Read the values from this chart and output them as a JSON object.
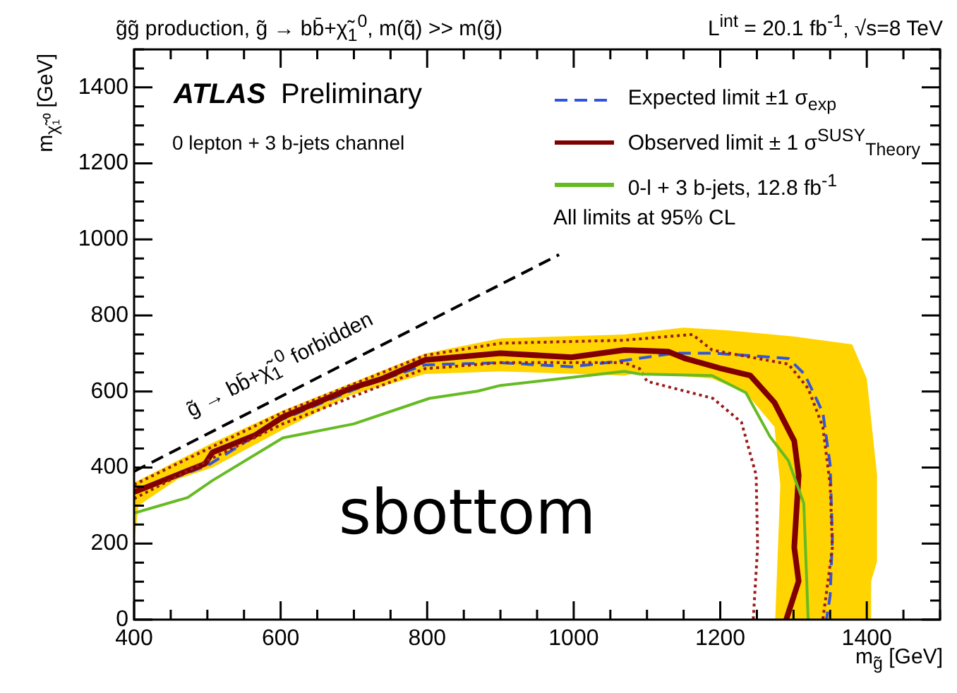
{
  "chart_data": {
    "type": "line",
    "title": "g̃g̃  production, g̃ → bb̄+χ̃$_{1}$$^{0}$, m(q̃) >> m(g̃)",
    "subtitle": "L$^{int}$ = 20.1 fb$^{-1}$, √s=8 TeV",
    "xlabel": "m$_{g̃}$ [GeV]",
    "ylabel": "m$_{χ̃₁⁰}$ [GeV]",
    "annotations": [
      "ATLAS",
      "Preliminary",
      "0 lepton + 3 b-jets channel",
      "All limits at 95% CL",
      "sbottom",
      "g̃ → bb̄+χ̃$_{1}$$^{0}$ forbidden"
    ],
    "xlim": [
      400,
      1500
    ],
    "ylim": [
      0,
      1500
    ],
    "xticks": [
      400,
      {
        "value": 450,
        "label": null
      },
      {
        "value": 500,
        "label": null
      },
      {
        "value": 550,
        "label": null
      },
      600,
      {
        "value": 650,
        "label": null
      },
      {
        "value": 700,
        "label": null
      },
      {
        "value": 750,
        "label": null
      },
      800,
      {
        "value": 850,
        "label": null
      },
      {
        "value": 900,
        "label": null
      },
      {
        "value": 950,
        "label": null
      },
      1000,
      {
        "value": 1050,
        "label": null
      },
      {
        "value": 1100,
        "label": null
      },
      {
        "value": 1150,
        "label": null
      },
      1200,
      {
        "value": 1250,
        "label": null
      },
      {
        "value": 1300,
        "label": null
      },
      {
        "value": 1350,
        "label": null
      },
      1400,
      {
        "value": 1450,
        "label": null
      },
      {
        "value": 1500,
        "label": null
      }
    ],
    "yticks": [
      0,
      {
        "value": 50,
        "label": null
      },
      {
        "value": 100,
        "label": null
      },
      {
        "value": 150,
        "label": null
      },
      200,
      {
        "value": 250,
        "label": null
      },
      {
        "value": 300,
        "label": null
      },
      {
        "value": 350,
        "label": null
      },
      400,
      {
        "value": 450,
        "label": null
      },
      {
        "value": 500,
        "label": null
      },
      {
        "value": 550,
        "label": null
      },
      600,
      {
        "value": 650,
        "label": null
      },
      {
        "value": 700,
        "label": null
      },
      {
        "value": 750,
        "label": null
      },
      800,
      {
        "value": 850,
        "label": null
      },
      {
        "value": 900,
        "label": null
      },
      {
        "value": 950,
        "label": null
      },
      1000,
      {
        "value": 1050,
        "label": null
      },
      {
        "value": 1100,
        "label": null
      },
      {
        "value": 1150,
        "label": null
      },
      1200,
      {
        "value": 1250,
        "label": null
      },
      {
        "value": 1300,
        "label": null
      },
      {
        "value": 1350,
        "label": null
      },
      1400,
      {
        "value": 1450,
        "label": null
      },
      {
        "value": 1500,
        "label": null
      }
    ],
    "grid": false,
    "legend": "top right",
    "marker": "none",
    "series": [
      {
        "type": "area",
        "color": "#ffd400",
        "x": [
          400,
          400,
          507,
          603,
          797,
          900,
          1069,
          1150,
          1209,
          1300,
          1380,
          1400,
          1414,
          1414,
          1406,
          1406,
          1275,
          1282,
          1274,
          1235,
          1189,
          1090,
          1069,
          900,
          797,
          695,
          603,
          507,
          460,
          406,
          400
        ],
        "values": [
          200,
          360,
          465,
          550,
          700,
          740,
          750,
          768,
          761,
          745,
          724,
          634,
          380,
          153,
          101,
          0,
          0,
          354,
          507,
          597,
          634,
          650,
          642,
          653,
          646,
          590,
          500,
          400,
          370,
          300,
          200
        ]
      },
      {
        "name": "Expected limit ±1 σ$_{exp}$",
        "color": "#3355dd",
        "line_style": "dashed",
        "x": [
          400,
          500,
          600,
          700,
          797,
          900,
          997,
          1059,
          1138,
          1190,
          1293,
          1315,
          1340,
          1350,
          1353,
          1350,
          1345
        ],
        "values": [
          335,
          405,
          525,
          605,
          670,
          676,
          665,
          679,
          701,
          701,
          687,
          646,
          545,
          407,
          216,
          63,
          0
        ]
      },
      {
        "name": "Observed limit ± 1 σ$^{SUSY}$$_{Theory}$",
        "color": "#800000",
        "line_style": "solid",
        "x": [
          400,
          406,
          497,
          507,
          565,
          603,
          695,
          739,
          797,
          900,
          997,
          1069,
          1129,
          1152,
          1202,
          1241,
          1274,
          1301,
          1307,
          1301,
          1307,
          1290
        ],
        "values": [
          336,
          340,
          410,
          440,
          485,
          533,
          608,
          634,
          683,
          701,
          690,
          709,
          705,
          687,
          660,
          642,
          571,
          470,
          380,
          190,
          101,
          0
        ]
      },
      {
        "color": "#9b1b1b",
        "line_style": "dotted",
        "x": [
          400,
          507,
          603,
          797,
          900,
          1069,
          1162,
          1189,
          1293,
          1320,
          1340,
          1350,
          1353,
          1347,
          1340
        ],
        "values": [
          355,
          455,
          545,
          695,
          727,
          735,
          750,
          709,
          672,
          608,
          507,
          354,
          190,
          101,
          0
        ]
      },
      {
        "color": "#9b1b1b",
        "line_style": "dotted",
        "x": [
          400,
          507,
          603,
          797,
          900,
          1069,
          1090,
          1100,
          1190,
          1229,
          1249,
          1251,
          1245
        ],
        "values": [
          318,
          425,
          515,
          660,
          676,
          676,
          660,
          627,
          582,
          519,
          380,
          190,
          0
        ]
      },
      {
        "name": "0-l + 3 b-jets, 12.8 fb$^{-1}$",
        "color": "#66bb22",
        "line_style": "solid",
        "x": [
          400,
          473,
          507,
          603,
          700,
          803,
          869,
          900,
          1069,
          1090,
          1189,
          1235,
          1268,
          1293,
          1314,
          1320
        ],
        "values": [
          280,
          321,
          366,
          478,
          515,
          582,
          601,
          616,
          653,
          646,
          642,
          597,
          481,
          418,
          306,
          0
        ]
      },
      {
        "color": "#000000",
        "line_style": "dashed",
        "x": [
          400,
          980
        ],
        "values": [
          390,
          960
        ]
      }
    ]
  }
}
